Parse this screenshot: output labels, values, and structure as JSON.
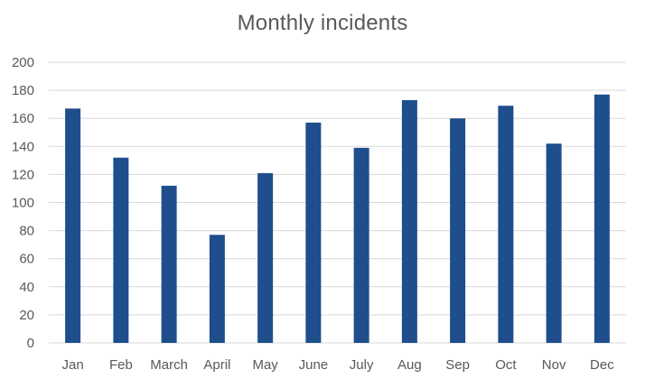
{
  "chart_data": {
    "type": "bar",
    "title": "Monthly incidents",
    "xlabel": "",
    "ylabel": "",
    "categories": [
      "Jan",
      "Feb",
      "March",
      "April",
      "May",
      "June",
      "July",
      "Aug",
      "Sep",
      "Oct",
      "Nov",
      "Dec"
    ],
    "values": [
      167,
      132,
      112,
      77,
      121,
      157,
      139,
      173,
      160,
      169,
      142,
      177
    ],
    "ylim": [
      0,
      200
    ],
    "yticks": [
      0,
      20,
      40,
      60,
      80,
      100,
      120,
      140,
      160,
      180,
      200
    ],
    "grid": true,
    "legend": "none",
    "colors": {
      "bar": "#1f4e8c",
      "grid": "#d9d9d9",
      "axis_text": "#595959"
    }
  }
}
